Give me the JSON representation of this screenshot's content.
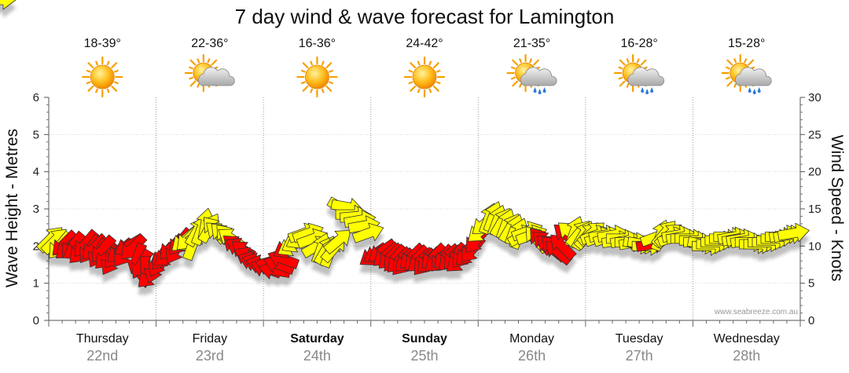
{
  "chart_data": {
    "type": "scatter",
    "title": "7 day wind & wave forecast for Lamington",
    "ylabel_left": "Wave Height - Metres",
    "ylabel_right": "Wind Speed - Knots",
    "ylim_left": [
      0,
      6
    ],
    "ylim_right": [
      0,
      30
    ],
    "yticks_left": [
      "0",
      "1",
      "2",
      "3",
      "4",
      "5",
      "6"
    ],
    "yticks_right": [
      "0",
      "5",
      "10",
      "15",
      "20",
      "25",
      "30"
    ],
    "credit": "www.seabreeze.com.au",
    "days": [
      {
        "name": "Thursday",
        "date": "22nd",
        "bold": false,
        "temp": "18-39°",
        "icon": "sunny-icon"
      },
      {
        "name": "Friday",
        "date": "23rd",
        "bold": false,
        "temp": "22-36°",
        "icon": "partly-cloudy-icon"
      },
      {
        "name": "Saturday",
        "date": "24th",
        "bold": true,
        "temp": "16-36°",
        "icon": "sunny-icon"
      },
      {
        "name": "Sunday",
        "date": "25th",
        "bold": true,
        "temp": "24-42°",
        "icon": "sunny-icon"
      },
      {
        "name": "Monday",
        "date": "26th",
        "bold": false,
        "temp": "21-35°",
        "icon": "cloud-rain-icon"
      },
      {
        "name": "Tuesday",
        "date": "27th",
        "bold": false,
        "temp": "16-28°",
        "icon": "cloud-rain-icon"
      },
      {
        "name": "Wednesday",
        "date": "28th",
        "bold": false,
        "temp": "15-28°",
        "icon": "cloud-rain-icon"
      }
    ],
    "colors": {
      "light_wind": "#ffff00",
      "strong_wind": "#ff0000",
      "outline": "#333333",
      "grid": "#999999"
    },
    "series": [
      {
        "name": "wind",
        "x_days": [
          0.02,
          0.06,
          0.1,
          0.14,
          0.18,
          0.22,
          0.26,
          0.3,
          0.34,
          0.38,
          0.42,
          0.46,
          0.5,
          0.54,
          0.58,
          0.62,
          0.66,
          0.7,
          0.74,
          0.78,
          0.82,
          0.86,
          0.9,
          0.94,
          0.98,
          1.02,
          1.06,
          1.1,
          1.14,
          1.18,
          1.22,
          1.26,
          1.3,
          1.34,
          1.38,
          1.42,
          1.46,
          1.5,
          1.54,
          1.58,
          1.62,
          1.66,
          1.7,
          1.74,
          1.78,
          1.82,
          1.86,
          1.9,
          1.94,
          1.98,
          2.02,
          2.06,
          2.1,
          2.14,
          2.18,
          2.22,
          2.26,
          2.3,
          2.34,
          2.38,
          2.42,
          2.46,
          2.5,
          2.54,
          2.58,
          2.62,
          2.66,
          2.7,
          2.74,
          2.78,
          2.82,
          2.86,
          2.9,
          2.94,
          2.98,
          3.02,
          3.06,
          3.1,
          3.14,
          3.18,
          3.22,
          3.26,
          3.3,
          3.34,
          3.38,
          3.42,
          3.46,
          3.5,
          3.54,
          3.58,
          3.62,
          3.66,
          3.7,
          3.74,
          3.78,
          3.82,
          3.86,
          3.9,
          3.94,
          3.98,
          4.02,
          4.06,
          4.1,
          4.14,
          4.18,
          4.22,
          4.26,
          4.3,
          4.34,
          4.38,
          4.42,
          4.46,
          4.5,
          4.54,
          4.58,
          4.62,
          4.66,
          4.7,
          4.74,
          4.78,
          4.82,
          4.86,
          4.9,
          4.94,
          4.98,
          5.02,
          5.06,
          5.1,
          5.14,
          5.18,
          5.22,
          5.26,
          5.3,
          5.34,
          5.38,
          5.42,
          5.46,
          5.5,
          5.54,
          5.58,
          5.62,
          5.66,
          5.7,
          5.74,
          5.78,
          5.82,
          5.86,
          5.9,
          5.94,
          5.98,
          6.02,
          6.06,
          6.1,
          6.14,
          6.18,
          6.22,
          6.26,
          6.3,
          6.34,
          6.38,
          6.42,
          6.46,
          6.5,
          6.54,
          6.58,
          6.62,
          6.66,
          6.7,
          6.74,
          6.78,
          6.82,
          6.86,
          6.9,
          6.94,
          6.98
        ],
        "wave_m": [
          2.2,
          2.15,
          2.0,
          2.05,
          1.95,
          2.0,
          1.9,
          1.85,
          2.05,
          1.9,
          1.95,
          1.8,
          1.9,
          1.7,
          1.6,
          1.75,
          1.85,
          1.8,
          2.0,
          1.95,
          1.65,
          1.5,
          1.3,
          1.2,
          1.4,
          1.55,
          1.7,
          1.75,
          1.95,
          1.9,
          2.1,
          2.15,
          2.2,
          2.05,
          2.4,
          2.45,
          2.6,
          2.5,
          2.45,
          2.35,
          2.3,
          2.25,
          2.2,
          2.0,
          1.95,
          1.85,
          1.7,
          1.6,
          1.55,
          1.5,
          1.4,
          1.45,
          1.35,
          1.5,
          1.65,
          1.95,
          2.0,
          2.1,
          2.2,
          2.35,
          2.35,
          2.2,
          2.0,
          1.95,
          1.9,
          1.85,
          1.95,
          2.15,
          3.0,
          3.05,
          2.85,
          2.8,
          2.7,
          2.55,
          2.35,
          1.75,
          1.8,
          1.85,
          1.75,
          1.7,
          1.65,
          1.6,
          1.55,
          1.6,
          1.7,
          1.65,
          1.6,
          1.55,
          1.6,
          1.7,
          1.6,
          1.65,
          1.7,
          1.65,
          1.7,
          1.6,
          1.75,
          1.8,
          1.9,
          2.15,
          2.4,
          2.6,
          2.75,
          2.8,
          2.7,
          2.65,
          2.6,
          2.5,
          2.45,
          2.35,
          2.3,
          2.4,
          2.3,
          2.2,
          2.15,
          2.1,
          2.0,
          1.95,
          1.85,
          2.0,
          2.3,
          2.35,
          2.4,
          2.35,
          2.3,
          2.3,
          2.35,
          2.3,
          2.25,
          2.3,
          2.25,
          2.3,
          2.15,
          2.2,
          2.15,
          2.1,
          2.1,
          2.05,
          2.05,
          2.0,
          2.05,
          2.25,
          2.3,
          2.35,
          2.3,
          2.25,
          2.3,
          2.25,
          2.2,
          2.2,
          2.15,
          2.1,
          2.05,
          2.0,
          2.05,
          2.1,
          2.15,
          2.2,
          2.25,
          2.25,
          2.2,
          2.2,
          2.15,
          2.1,
          2.05,
          2.05,
          2.1,
          2.1,
          2.15,
          2.2,
          2.25,
          2.3,
          2.3,
          2.35
        ],
        "speed_kn": [
          13,
          13,
          15,
          16,
          16,
          16,
          17,
          17,
          17,
          17,
          17,
          18,
          18,
          19,
          19,
          19,
          18,
          18,
          17,
          17,
          17,
          18,
          20,
          21,
          21,
          20,
          19,
          18,
          17,
          16,
          16,
          15,
          14,
          13,
          12,
          12,
          11,
          11,
          12,
          13,
          14,
          14,
          15,
          16,
          17,
          17,
          18,
          18,
          18,
          18,
          18,
          18,
          18,
          18,
          17,
          16,
          15,
          14,
          13,
          12,
          12,
          12,
          13,
          14,
          15,
          15,
          15,
          14,
          13,
          11,
          10,
          9,
          9,
          9,
          10,
          16,
          17,
          18,
          18,
          18,
          18,
          18,
          18,
          18,
          18,
          18,
          18,
          18,
          18,
          18,
          18,
          18,
          18,
          18,
          18,
          18,
          18,
          18,
          17,
          16,
          13,
          11,
          10,
          10,
          10,
          11,
          11,
          11,
          11,
          11,
          12,
          13,
          14,
          15,
          16,
          16,
          16,
          17,
          17,
          16,
          16,
          12,
          11,
          11,
          11,
          11,
          12,
          12,
          12,
          12,
          13,
          13,
          13,
          14,
          14,
          14,
          15,
          15,
          15,
          15,
          16,
          15,
          12,
          11,
          11,
          11,
          12,
          12,
          12,
          13,
          13,
          13,
          13,
          14,
          14,
          14,
          15,
          15,
          15,
          15,
          15,
          15,
          15,
          15,
          15,
          15,
          15,
          15,
          14,
          14,
          13,
          13,
          13,
          12,
          12,
          12
        ],
        "dir_deg": [
          225,
          225,
          40,
          45,
          50,
          40,
          60,
          45,
          40,
          35,
          45,
          30,
          40,
          45,
          30,
          40,
          50,
          35,
          60,
          45,
          20,
          30,
          0,
          45,
          20,
          30,
          40,
          50,
          45,
          30,
          40,
          50,
          45,
          200,
          210,
          200,
          190,
          210,
          140,
          130,
          135,
          140,
          125,
          130,
          120,
          130,
          120,
          110,
          110,
          105,
          110,
          110,
          100,
          110,
          110,
          60,
          60,
          60,
          60,
          250,
          250,
          250,
          240,
          200,
          210,
          200,
          220,
          230,
          300,
          280,
          270,
          265,
          260,
          260,
          250,
          55,
          60,
          55,
          50,
          45,
          40,
          45,
          40,
          50,
          45,
          45,
          50,
          40,
          45,
          45,
          50,
          40,
          50,
          45,
          40,
          50,
          40,
          45,
          40,
          40,
          50,
          50,
          200,
          200,
          200,
          210,
          200,
          210,
          200,
          200,
          240,
          250,
          250,
          140,
          140,
          130,
          130,
          135,
          130,
          135,
          130,
          130,
          200,
          220,
          210,
          220,
          230,
          250,
          250,
          260,
          250,
          260,
          260,
          270,
          260,
          270,
          260,
          280,
          280,
          270,
          260,
          250,
          200,
          220,
          230,
          250,
          260,
          260,
          270,
          270,
          270,
          270,
          280,
          270,
          270,
          270,
          270,
          270,
          270,
          260,
          260,
          260,
          260,
          270,
          270,
          270,
          270,
          270,
          270,
          270,
          270,
          260,
          260,
          260,
          250,
          250
        ]
      }
    ]
  }
}
